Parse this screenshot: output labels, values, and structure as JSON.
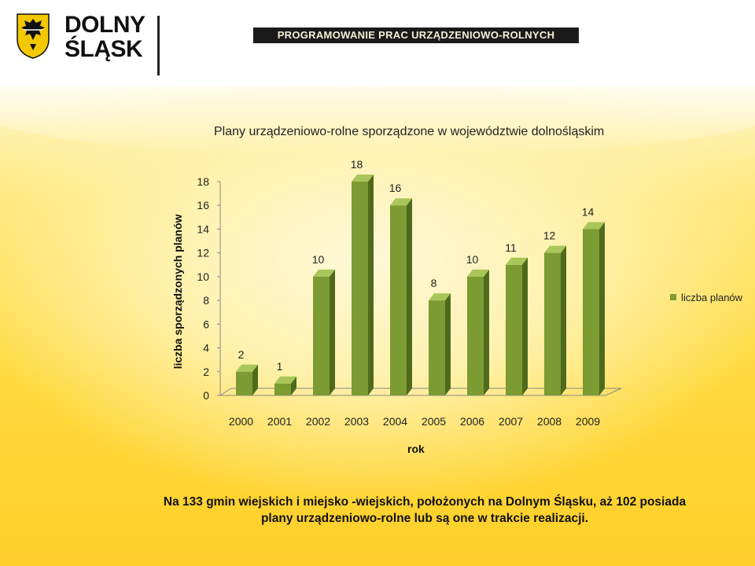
{
  "header": {
    "logo_line1": "DOLNY",
    "logo_line2": "ŚLĄSK",
    "banner": "PROGRAMOWANIE PRAC URZĄDZENIOWO-ROLNYCH"
  },
  "chart_data": {
    "type": "bar",
    "title": "Plany urządzeniowo-rolne sporządzone w województwie dolnośląskim",
    "xlabel": "rok",
    "ylabel": "liczba sporządzonych  planów",
    "categories": [
      "2000",
      "2001",
      "2002",
      "2003",
      "2004",
      "2005",
      "2006",
      "2007",
      "2008",
      "2009"
    ],
    "series": [
      {
        "name": "liczba planów",
        "values": [
          2,
          1,
          10,
          18,
          16,
          8,
          10,
          11,
          12,
          14
        ]
      }
    ],
    "ylim": [
      0,
      18
    ],
    "yticks": [
      0,
      2,
      4,
      6,
      8,
      10,
      12,
      14,
      16,
      18
    ],
    "data_labels": true,
    "grid": false,
    "legend_position": "right",
    "bar_color": "#7c9b33",
    "three_d": true
  },
  "legend": {
    "label": "liczba planów"
  },
  "footnote": {
    "line1": "Na 133 gmin wiejskich i miejsko -wiejskich, położonych na Dolnym Śląsku, aż 102 posiada",
    "line2": "plany urządzeniowo-rolne lub są one w trakcie realizacji."
  }
}
